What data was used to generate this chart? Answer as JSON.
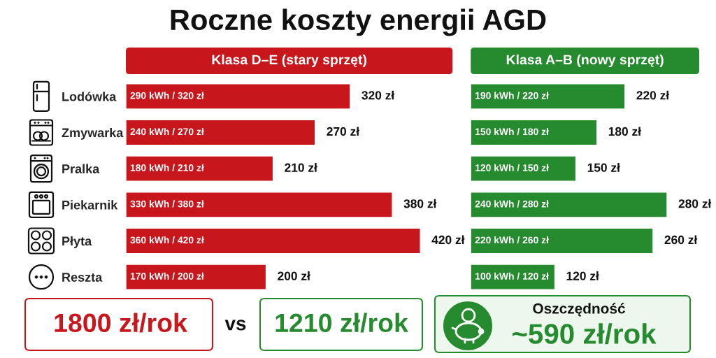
{
  "chart_data": [
    {
      "type": "bar",
      "orientation": "horizontal",
      "title": "Roczne koszty energii AGD",
      "categories": [
        "Lodówka",
        "Zmywarka",
        "Pralka",
        "Piekarnik",
        "Płyta",
        "Reszta"
      ],
      "tick_labels": "y",
      "series": [
        {
          "name": "Klasa D–E (stary sprzęt)",
          "color": "#c8161d",
          "values": [
            320,
            270,
            210,
            380,
            420,
            200
          ],
          "value_labels": [
            "320 zł",
            "270 zł",
            "210 zł",
            "380 zł",
            "420 zł",
            "200 zł"
          ]
        }
      ],
      "annotations": [
        "290 kWh / 320 zł",
        "240 kWh / 270 zł",
        "180 kWh / 210 zł",
        "330 kWh / 380 zł",
        "360 kWh / 420 zł",
        "170 kWh / 200 zł"
      ]
    },
    {
      "type": "bar",
      "orientation": "horizontal",
      "categories": [
        null,
        null,
        null,
        null,
        null,
        null
      ],
      "series": [
        {
          "name": "Klasa A–B (nowy sprzęt)",
          "color": "#268a2f",
          "values": [
            220,
            180,
            150,
            280,
            260,
            120
          ],
          "value_labels": [
            "220 zł",
            "180 zł",
            "150 zł",
            "280 zł",
            "260 zł",
            "120 zł"
          ]
        }
      ],
      "annotations": [
        "190 kWh / 220 zł",
        "150 kWh / 180 zł",
        "120 kWh / 150 zł",
        "240 kWh / 280 zł",
        "220 kWh / 260 zł",
        "100 kWh / 120 zł"
      ]
    },
    {
      "type": "other",
      "annotations": [
        "1800 zł/rok",
        "vs",
        "1210 zł/rok",
        "Oszczędność",
        "~590 zł/rok"
      ]
    }
  ]
}
